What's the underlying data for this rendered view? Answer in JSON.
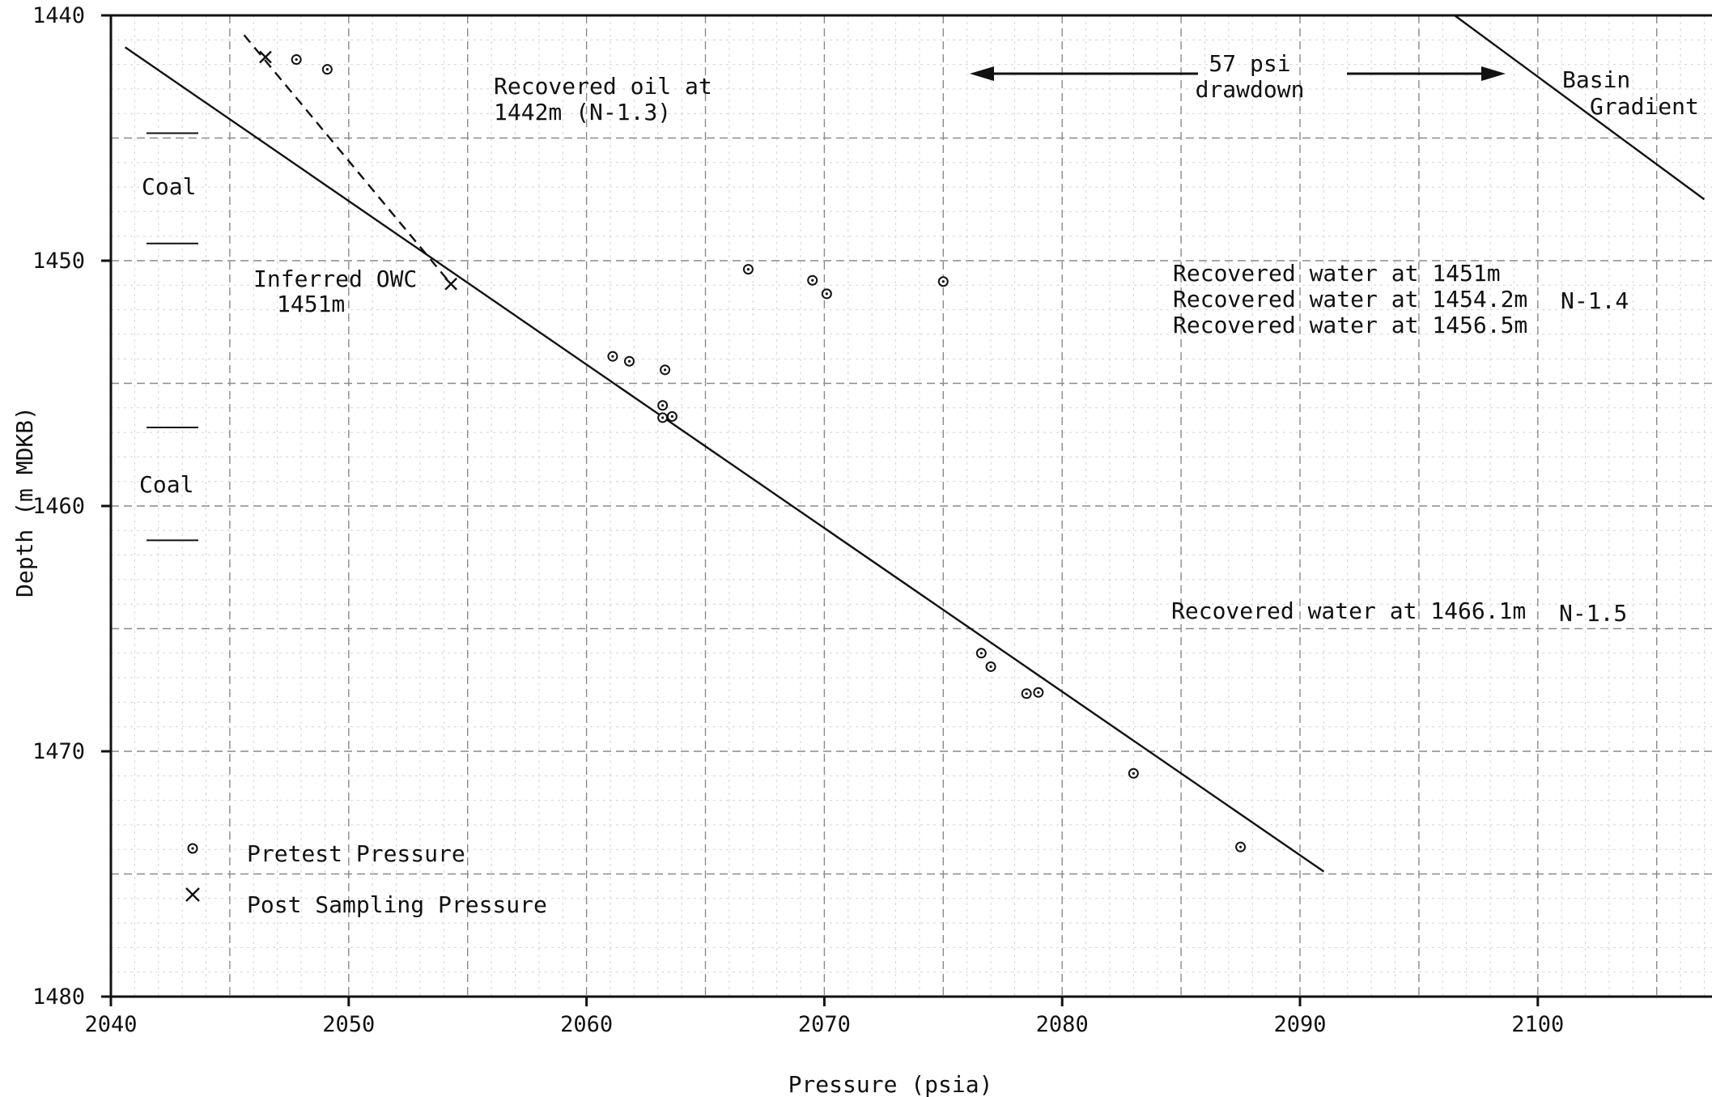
{
  "chart_data": {
    "type": "scatter",
    "xlabel": "Pressure (psia)",
    "ylabel": "Depth (m MDKB)",
    "xlim": [
      2040,
      2107
    ],
    "ylim": [
      1480,
      1440
    ],
    "y_inverted": true,
    "xticks": [
      2040,
      2050,
      2060,
      2070,
      2080,
      2090,
      2100
    ],
    "yticks": [
      1440,
      1450,
      1460,
      1470,
      1480
    ],
    "grid": true,
    "series": [
      {
        "name": "Pretest Pressure",
        "marker": "circle-dot",
        "points": [
          [
            2047.8,
            1441.8
          ],
          [
            2049.1,
            1442.2
          ],
          [
            2066.8,
            1450.35
          ],
          [
            2069.5,
            1450.8
          ],
          [
            2070.1,
            1451.35
          ],
          [
            2075.0,
            1450.85
          ],
          [
            2061.1,
            1453.9
          ],
          [
            2061.8,
            1454.1
          ],
          [
            2063.3,
            1454.45
          ],
          [
            2063.2,
            1455.9
          ],
          [
            2063.2,
            1456.4
          ],
          [
            2063.6,
            1456.35
          ],
          [
            2076.6,
            1466.0
          ],
          [
            2077.0,
            1466.55
          ],
          [
            2078.5,
            1467.65
          ],
          [
            2079.0,
            1467.6
          ],
          [
            2083.0,
            1470.9
          ],
          [
            2087.5,
            1473.9
          ]
        ]
      },
      {
        "name": "Post Sampling Pressure",
        "marker": "x",
        "points": [
          [
            2046.5,
            1441.7
          ],
          [
            2054.3,
            1450.95
          ]
        ]
      }
    ],
    "lines": [
      {
        "role": "water-gradient",
        "style": "solid",
        "points": [
          [
            2040.6,
            1441.3
          ],
          [
            2091.0,
            1474.9
          ]
        ]
      },
      {
        "role": "oil-gradient",
        "style": "dashed",
        "points": [
          [
            2045.6,
            1440.8
          ],
          [
            2054.3,
            1450.95
          ]
        ]
      },
      {
        "role": "basin-gradient",
        "style": "solid",
        "points": [
          [
            2096.5,
            1440.0
          ],
          [
            2107.0,
            1447.5
          ]
        ]
      }
    ],
    "coal_intervals": [
      [
        1444.8,
        1449.3
      ],
      [
        1456.8,
        1461.4
      ]
    ],
    "legend": {
      "placement": "bottom-left",
      "items": [
        {
          "label": "Pretest Pressure",
          "marker": "circle-dot"
        },
        {
          "label": "Post Sampling Pressure",
          "marker": "x"
        }
      ]
    },
    "annotations": {
      "coal_upper": "Coal",
      "coal_lower": "Coal",
      "recovered_oil_line1": "Recovered oil at",
      "recovered_oil_line2": "1442m (N-1.3)",
      "drawdown_value": "57 psi",
      "drawdown_label": "drawdown",
      "basin_line1": "Basin",
      "basin_line2": "Gradient",
      "owc_line1": "Inferred OWC",
      "owc_line2": "1451m",
      "water_1": "Recovered water at 1451m",
      "water_2": "Recovered water at 1454.2m",
      "water_3": "Recovered water at 1456.5m",
      "test_n14": "N-1.4",
      "water_4": "Recovered water at 1466.1m",
      "test_n15": "N-1.5"
    }
  }
}
